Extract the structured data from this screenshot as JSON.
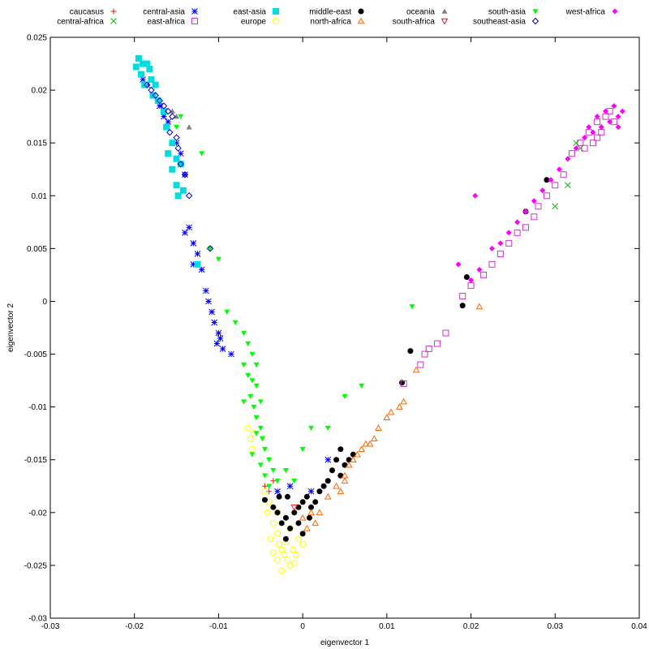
{
  "chart_data": {
    "type": "scatter",
    "title": "",
    "xlabel": "eigenvector 1",
    "ylabel": "eigenvector 2",
    "xlim": [
      -0.03,
      0.04
    ],
    "ylim": [
      -0.03,
      0.025
    ],
    "x_ticks": [
      "-0.03",
      "-0.02",
      "-0.01",
      "0",
      "0.01",
      "0.02",
      "0.03",
      "0.04"
    ],
    "y_ticks": [
      "0.025",
      "0.02",
      "0.015",
      "0.01",
      "0.005",
      "0",
      "-0.005",
      "-0.01",
      "-0.015",
      "-0.02",
      "-0.025",
      "-0.03"
    ],
    "grid": false,
    "legend_position": "top",
    "series": [
      {
        "name": "caucasus",
        "color": "#e41a1c",
        "marker": "plus",
        "points": [
          [
            -0.0045,
            -0.0175
          ],
          [
            -0.004,
            -0.018
          ],
          [
            -0.0035,
            -0.017
          ]
        ]
      },
      {
        "name": "central-africa",
        "color": "#00c000",
        "marker": "x",
        "points": [
          [
            0.033,
            0.0145
          ],
          [
            0.03,
            0.009
          ],
          [
            0.0315,
            0.011
          ],
          [
            0.0325,
            0.015
          ]
        ]
      },
      {
        "name": "central-asia",
        "color": "#0000ff",
        "marker": "star",
        "points": [
          [
            -0.019,
            0.021
          ],
          [
            -0.0185,
            0.0205
          ],
          [
            -0.0178,
            0.0195
          ],
          [
            -0.017,
            0.0185
          ],
          [
            -0.0165,
            0.0175
          ],
          [
            -0.016,
            0.017
          ],
          [
            -0.015,
            0.015
          ],
          [
            -0.0145,
            0.014
          ],
          [
            -0.014,
            0.012
          ],
          [
            -0.0135,
            0.007
          ],
          [
            -0.014,
            0.0065
          ],
          [
            -0.013,
            0.0055
          ],
          [
            -0.0125,
            0.0045
          ],
          [
            -0.013,
            0.0035
          ],
          [
            -0.012,
            0.003
          ],
          [
            -0.0115,
            0.001
          ],
          [
            -0.0112,
            0.0
          ],
          [
            -0.0108,
            -0.001
          ],
          [
            -0.0105,
            -0.002
          ],
          [
            -0.01,
            -0.003
          ],
          [
            -0.0098,
            -0.0035
          ],
          [
            -0.0095,
            -0.0045
          ],
          [
            -0.0102,
            -0.004
          ],
          [
            -0.0085,
            -0.005
          ],
          [
            -0.003,
            -0.018
          ],
          [
            -0.0015,
            -0.0175
          ],
          [
            0.001,
            -0.018
          ],
          [
            0.003,
            -0.015
          ]
        ]
      },
      {
        "name": "east-asia",
        "color": "#00dddd",
        "marker": "square",
        "points": [
          [
            -0.0195,
            0.023
          ],
          [
            -0.019,
            0.0225
          ],
          [
            -0.0185,
            0.0225
          ],
          [
            -0.0198,
            0.0222
          ],
          [
            -0.0192,
            0.0215
          ],
          [
            -0.0182,
            0.022
          ],
          [
            -0.018,
            0.021
          ],
          [
            -0.0188,
            0.0205
          ],
          [
            -0.0175,
            0.0205
          ],
          [
            -0.0178,
            0.0195
          ],
          [
            -0.0172,
            0.019
          ],
          [
            -0.0165,
            0.018
          ],
          [
            -0.0162,
            0.0165
          ],
          [
            -0.0155,
            0.015
          ],
          [
            -0.016,
            0.014
          ],
          [
            -0.015,
            0.0135
          ],
          [
            -0.0145,
            0.013
          ],
          [
            -0.0155,
            0.0125
          ],
          [
            -0.015,
            0.011
          ],
          [
            -0.0142,
            0.0105
          ],
          [
            -0.0148,
            0.01
          ],
          [
            -0.0125,
            0.0035
          ]
        ]
      },
      {
        "name": "europe",
        "color": "#ffff00",
        "marker": "circle",
        "points": [
          [
            -0.0065,
            -0.012
          ],
          [
            -0.0062,
            -0.013
          ],
          [
            -0.006,
            -0.014
          ],
          [
            -0.0058,
            -0.0125
          ],
          [
            -0.0045,
            -0.018
          ],
          [
            -0.004,
            -0.019
          ],
          [
            -0.0042,
            -0.02
          ],
          [
            -0.0035,
            -0.021
          ],
          [
            -0.003,
            -0.022
          ],
          [
            -0.0028,
            -0.023
          ],
          [
            -0.0025,
            -0.0235
          ],
          [
            -0.0022,
            -0.024
          ],
          [
            -0.0018,
            -0.0245
          ],
          [
            -0.0015,
            -0.025
          ],
          [
            -0.001,
            -0.0248
          ],
          [
            -0.0008,
            -0.024
          ],
          [
            -0.0012,
            -0.0235
          ],
          [
            -0.0005,
            -0.0225
          ],
          [
            -0.003,
            -0.0245
          ],
          [
            -0.0035,
            -0.0238
          ],
          [
            -0.002,
            -0.0228
          ],
          [
            -0.0038,
            -0.0225
          ],
          [
            -0.0015,
            -0.0215
          ],
          [
            0.0,
            -0.023
          ],
          [
            -0.0025,
            -0.0255
          ],
          [
            -0.003,
            -0.02
          ]
        ]
      },
      {
        "name": "middle-east",
        "color": "#000000",
        "marker": "circle-filled",
        "points": [
          [
            -0.003,
            -0.02
          ],
          [
            -0.002,
            -0.0205
          ],
          [
            -0.001,
            -0.02
          ],
          [
            -0.0005,
            -0.0195
          ],
          [
            0.0,
            -0.019
          ],
          [
            0.0005,
            -0.0185
          ],
          [
            0.001,
            -0.0195
          ],
          [
            0.0015,
            -0.019
          ],
          [
            0.002,
            -0.018
          ],
          [
            0.0025,
            -0.0175
          ],
          [
            0.003,
            -0.017
          ],
          [
            0.0035,
            -0.016
          ],
          [
            0.004,
            -0.015
          ],
          [
            0.0045,
            -0.0165
          ],
          [
            0.005,
            -0.0155
          ],
          [
            0.0055,
            -0.015
          ],
          [
            0.006,
            -0.0145
          ],
          [
            -0.0015,
            -0.0215
          ],
          [
            -0.0025,
            -0.021
          ],
          [
            0.0,
            -0.022
          ],
          [
            -0.002,
            -0.0225
          ],
          [
            -0.0005,
            -0.021
          ],
          [
            0.0008,
            -0.0205
          ],
          [
            -0.0035,
            -0.0195
          ],
          [
            -0.0028,
            -0.0185
          ],
          [
            -0.0018,
            -0.0185
          ],
          [
            0.0118,
            -0.0077
          ],
          [
            0.0128,
            -0.0047
          ],
          [
            0.019,
            -0.0004
          ],
          [
            0.0195,
            0.0023
          ],
          [
            0.029,
            0.0115
          ],
          [
            0.0265,
            0.0085
          ],
          [
            -0.0045,
            -0.0188
          ],
          [
            0.0045,
            -0.014
          ]
        ]
      },
      {
        "name": "north-africa",
        "color": "#ff6600",
        "marker": "triangle",
        "points": [
          [
            0.0,
            -0.0205
          ],
          [
            0.001,
            -0.02
          ],
          [
            0.0015,
            -0.021
          ],
          [
            0.002,
            -0.02
          ],
          [
            0.003,
            -0.0185
          ],
          [
            0.004,
            -0.0175
          ],
          [
            0.005,
            -0.0165
          ],
          [
            0.0055,
            -0.0155
          ],
          [
            0.006,
            -0.015
          ],
          [
            0.0065,
            -0.0145
          ],
          [
            0.007,
            -0.014
          ],
          [
            0.0075,
            -0.0135
          ],
          [
            0.008,
            -0.0135
          ],
          [
            0.0085,
            -0.013
          ],
          [
            0.009,
            -0.012
          ],
          [
            0.01,
            -0.011
          ],
          [
            0.0105,
            -0.0105
          ],
          [
            0.0115,
            -0.01
          ],
          [
            0.012,
            -0.0095
          ],
          [
            0.0135,
            -0.0065
          ],
          [
            0.021,
            -0.0005
          ],
          [
            0.005,
            -0.017
          ],
          [
            0.0045,
            -0.018
          ],
          [
            0.0005,
            -0.0215
          ]
        ]
      },
      {
        "name": "oceania",
        "color": "#808080",
        "marker": "triangle-filled",
        "points": [
          [
            -0.0155,
            0.018
          ],
          [
            -0.015,
            0.0175
          ],
          [
            -0.0135,
            0.0165
          ]
        ]
      },
      {
        "name": "south-africa",
        "color": "#e41a1c",
        "marker": "triangle-down",
        "points": [
          [
            -0.001,
            -0.0195
          ]
        ]
      },
      {
        "name": "south-asia",
        "color": "#00ff00",
        "marker": "triangle-down-filled",
        "points": [
          [
            -0.0145,
            0.0175
          ],
          [
            -0.015,
            0.0165
          ],
          [
            -0.012,
            0.014
          ],
          [
            -0.011,
            0.005
          ],
          [
            -0.01,
            0.004
          ],
          [
            -0.009,
            -0.001
          ],
          [
            -0.008,
            -0.002
          ],
          [
            -0.007,
            -0.003
          ],
          [
            -0.0065,
            -0.004
          ],
          [
            -0.006,
            -0.005
          ],
          [
            -0.007,
            -0.006
          ],
          [
            -0.0065,
            -0.007
          ],
          [
            -0.006,
            -0.0075
          ],
          [
            -0.0055,
            -0.008
          ],
          [
            -0.0062,
            -0.009
          ],
          [
            -0.0058,
            -0.01
          ],
          [
            -0.0055,
            -0.011
          ],
          [
            -0.005,
            -0.012
          ],
          [
            -0.0048,
            -0.013
          ],
          [
            -0.0045,
            -0.014
          ],
          [
            -0.004,
            -0.015
          ],
          [
            -0.0035,
            -0.016
          ],
          [
            -0.003,
            -0.017
          ],
          [
            -0.0055,
            -0.0125
          ],
          [
            -0.006,
            -0.0145
          ],
          [
            -0.005,
            -0.0155
          ],
          [
            -0.0045,
            -0.0165
          ],
          [
            -0.004,
            -0.0175
          ],
          [
            -0.002,
            -0.016
          ],
          [
            -0.001,
            -0.017
          ],
          [
            0.0,
            -0.014
          ],
          [
            0.001,
            -0.012
          ],
          [
            0.003,
            -0.012
          ],
          [
            0.005,
            -0.009
          ],
          [
            0.007,
            -0.008
          ],
          [
            0.013,
            -0.0005
          ],
          [
            -0.007,
            -0.0095
          ],
          [
            -0.0055,
            -0.006
          ],
          [
            -0.005,
            -0.0095
          ]
        ]
      },
      {
        "name": "southeast-asia",
        "color": "#0000cc",
        "marker": "diamond",
        "points": [
          [
            -0.0185,
            0.0205
          ],
          [
            -0.018,
            0.02
          ],
          [
            -0.0175,
            0.0195
          ],
          [
            -0.017,
            0.019
          ],
          [
            -0.0165,
            0.0185
          ],
          [
            -0.016,
            0.018
          ],
          [
            -0.0155,
            0.0175
          ],
          [
            -0.0158,
            0.016
          ],
          [
            -0.015,
            0.0155
          ],
          [
            -0.0148,
            0.0145
          ],
          [
            -0.0145,
            0.013
          ],
          [
            -0.014,
            0.012
          ],
          [
            -0.0135,
            0.01
          ],
          [
            -0.011,
            0.005
          ]
        ]
      },
      {
        "name": "east-africa",
        "color": "#cc33cc",
        "marker": "square",
        "points": [
          [
            0.033,
            0.015
          ],
          [
            0.034,
            0.016
          ],
          [
            0.035,
            0.017
          ],
          [
            0.036,
            0.0175
          ],
          [
            0.0365,
            0.018
          ],
          [
            0.0355,
            0.016
          ],
          [
            0.0345,
            0.015
          ],
          [
            0.0335,
            0.0145
          ],
          [
            0.032,
            0.014
          ],
          [
            0.031,
            0.012
          ],
          [
            0.03,
            0.011
          ],
          [
            0.029,
            0.01
          ],
          [
            0.028,
            0.009
          ],
          [
            0.0275,
            0.008
          ],
          [
            0.0265,
            0.007
          ],
          [
            0.0255,
            0.0065
          ],
          [
            0.0245,
            0.0055
          ],
          [
            0.0235,
            0.0045
          ],
          [
            0.0225,
            0.0035
          ],
          [
            0.0215,
            0.0025
          ],
          [
            0.02,
            0.0015
          ],
          [
            0.019,
            0.0005
          ],
          [
            0.017,
            -0.003
          ],
          [
            0.016,
            -0.004
          ],
          [
            0.015,
            -0.0045
          ],
          [
            0.0145,
            -0.005
          ],
          [
            0.014,
            -0.006
          ],
          [
            0.012,
            -0.0078
          ],
          [
            0.037,
            0.017
          ],
          [
            0.035,
            0.0155
          ]
        ]
      },
      {
        "name": "west-africa",
        "color": "#ff00ff",
        "marker": "diamond-filled",
        "points": [
          [
            0.034,
            0.0165
          ],
          [
            0.035,
            0.0175
          ],
          [
            0.036,
            0.018
          ],
          [
            0.037,
            0.0185
          ],
          [
            0.0375,
            0.0175
          ],
          [
            0.0365,
            0.017
          ],
          [
            0.0355,
            0.0165
          ],
          [
            0.0345,
            0.016
          ],
          [
            0.0335,
            0.0155
          ],
          [
            0.0325,
            0.0145
          ],
          [
            0.0315,
            0.0135
          ],
          [
            0.0305,
            0.0125
          ],
          [
            0.0295,
            0.0115
          ],
          [
            0.0285,
            0.0105
          ],
          [
            0.0275,
            0.0095
          ],
          [
            0.0265,
            0.0085
          ],
          [
            0.0255,
            0.0075
          ],
          [
            0.0245,
            0.0065
          ],
          [
            0.0235,
            0.0055
          ],
          [
            0.0225,
            0.005
          ],
          [
            0.0205,
            0.01
          ],
          [
            0.0185,
            0.0035
          ],
          [
            0.021,
            0.003
          ],
          [
            0.02,
            0.002
          ],
          [
            0.038,
            0.018
          ],
          [
            0.0375,
            0.0165
          ]
        ]
      }
    ]
  }
}
